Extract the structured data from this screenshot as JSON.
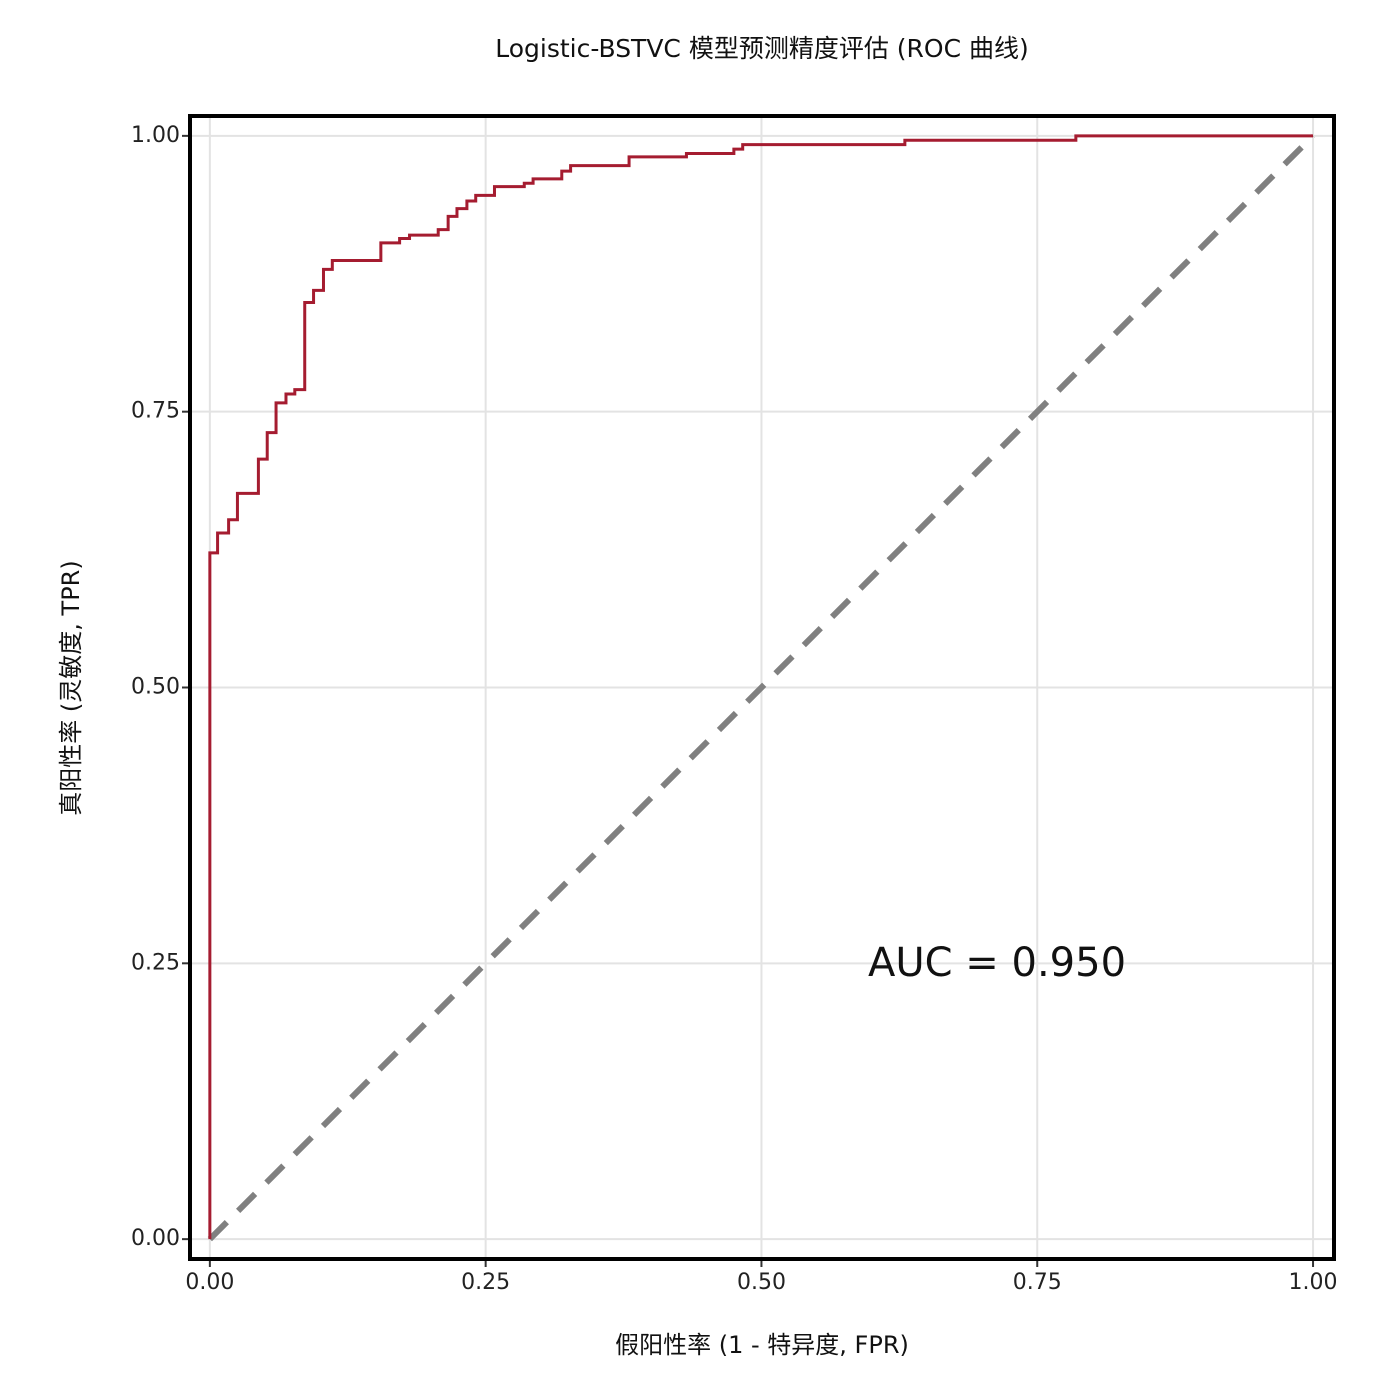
{
  "chart_data": {
    "type": "line",
    "title": "Logistic-BSTVC 模型预测精度评估 (ROC 曲线)",
    "x_label": "假阳性率 (1 - 特异度, FPR)",
    "y_label": "真阳性率 (灵敏度, TPR)",
    "annotation": "AUC = 0.950",
    "xlim": [
      -0.018,
      1.019
    ],
    "ylim": [
      -0.018,
      1.018
    ],
    "xticks": [
      {
        "value": 0,
        "label": "0.00"
      },
      {
        "value": 0.25,
        "label": "0.25"
      },
      {
        "value": 0.5,
        "label": "0.50"
      },
      {
        "value": 0.75,
        "label": "0.75"
      },
      {
        "value": 1,
        "label": "1.00"
      }
    ],
    "yticks": [
      {
        "value": 0,
        "label": "0.00"
      },
      {
        "value": 0.25,
        "label": "0.25"
      },
      {
        "value": 0.5,
        "label": "0.50"
      },
      {
        "value": 0.75,
        "label": "0.75"
      },
      {
        "value": 1,
        "label": "1.00"
      }
    ],
    "grid": true,
    "series": [
      {
        "color": "#a51c30",
        "dash": false,
        "x": [
          0,
          0,
          0.007,
          0.007,
          0.017,
          0.017,
          0.025,
          0.025,
          0.044,
          0.044,
          0.052,
          0.052,
          0.06,
          0.06,
          0.069,
          0.069,
          0.077,
          0.077,
          0.086,
          0.086,
          0.094,
          0.094,
          0.103,
          0.103,
          0.111,
          0.111,
          0.155,
          0.155,
          0.172,
          0.172,
          0.181,
          0.181,
          0.207,
          0.207,
          0.216,
          0.216,
          0.224,
          0.224,
          0.233,
          0.233,
          0.241,
          0.241,
          0.258,
          0.258,
          0.285,
          0.285,
          0.293,
          0.293,
          0.319,
          0.319,
          0.327,
          0.327,
          0.38,
          0.38,
          0.432,
          0.432,
          0.475,
          0.475,
          0.483,
          0.483,
          0.63,
          0.63,
          0.785,
          0.785,
          1
        ],
        "values": [
          0,
          0.622,
          0.622,
          0.64,
          0.64,
          0.652,
          0.652,
          0.676,
          0.676,
          0.707,
          0.707,
          0.731,
          0.731,
          0.758,
          0.758,
          0.766,
          0.766,
          0.77,
          0.77,
          0.849,
          0.849,
          0.86,
          0.86,
          0.879,
          0.879,
          0.887,
          0.887,
          0.903,
          0.903,
          0.907,
          0.907,
          0.91,
          0.91,
          0.915,
          0.915,
          0.927,
          0.927,
          0.934,
          0.934,
          0.941,
          0.941,
          0.946,
          0.946,
          0.954,
          0.954,
          0.957,
          0.957,
          0.961,
          0.961,
          0.968,
          0.968,
          0.973,
          0.973,
          0.981,
          0.981,
          0.984,
          0.984,
          0.988,
          0.988,
          0.992,
          0.992,
          0.996,
          0.996,
          1,
          1
        ]
      },
      {
        "color": "#808080",
        "dash": true,
        "x": [
          0,
          1
        ],
        "values": [
          0,
          1
        ]
      }
    ]
  }
}
